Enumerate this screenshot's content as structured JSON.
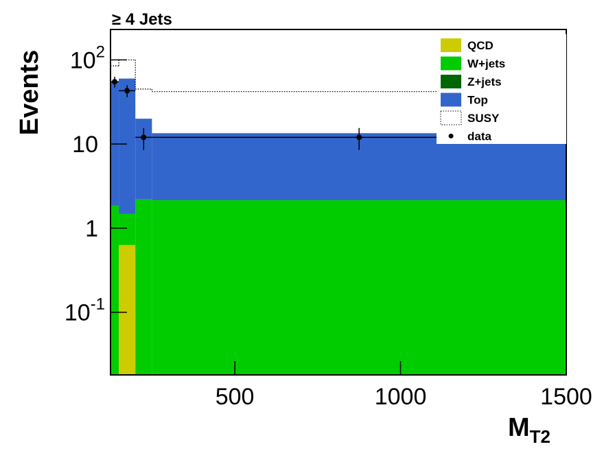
{
  "chart_data": {
    "type": "stacked_histogram",
    "title": "≥ 4 Jets",
    "x_label": "M",
    "x_label_sub": "T2",
    "y_label": "Events",
    "bins": [
      125,
      150,
      200,
      250,
      1500
    ],
    "series": [
      {
        "name": "QCD",
        "color": "#cccc00",
        "values": [
          0,
          0.63,
          0,
          0
        ]
      },
      {
        "name": "W+jets",
        "color": "#00cc00",
        "values": [
          1.85,
          0.85,
          2.2,
          2.15
        ]
      },
      {
        "name": "Z+jets",
        "color": "#006600",
        "values": [
          0,
          0,
          0,
          0
        ]
      },
      {
        "name": "Top",
        "color": "#3366cc",
        "values": [
          53,
          58.5,
          17.8,
          11.3
        ]
      }
    ],
    "overlay": {
      "name": "SUSY",
      "color": "#000000",
      "values": [
        85,
        100,
        45,
        42
      ]
    },
    "data": {
      "name": "data",
      "x": [
        137.5,
        175,
        225,
        875
      ],
      "xerr": [
        12.5,
        25,
        25,
        625
      ],
      "values": [
        55,
        43,
        12,
        12
      ],
      "errors": [
        8,
        7,
        3.5,
        3.5
      ]
    },
    "xlim": [
      125,
      1500
    ],
    "xticks": [
      500,
      1000,
      1500
    ],
    "ylim": [
      0.018,
      230
    ],
    "log_y": true,
    "yticks": [
      {
        "value": 0.1,
        "label": "10",
        "exponent": "-1"
      },
      1,
      10,
      {
        "value": 100,
        "label": "10",
        "exponent": "2"
      }
    ],
    "legend": "top-right"
  }
}
